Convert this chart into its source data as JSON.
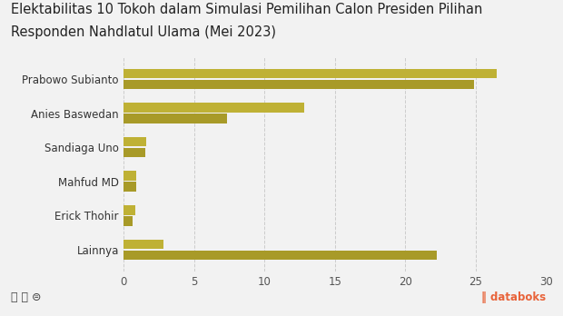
{
  "categories": [
    "Prabowo Subianto",
    "Anies Baswedan",
    "Sandiaga Uno",
    "Mahfud MD",
    "Erick Thohir",
    "Lainnya"
  ],
  "values_top": [
    26.5,
    12.8,
    1.6,
    0.9,
    0.8,
    2.8
  ],
  "values_bottom": [
    24.9,
    7.3,
    1.5,
    0.85,
    0.6,
    22.2
  ],
  "bar_color_top": "#bfb135",
  "bar_color_bottom": "#a89a28",
  "title_line1": "Elektabilitas 10 Tokoh dalam Simulasi Pemilihan Calon Presiden Pilihan",
  "title_line2": "Responden Nahdlatul Ulama (Mei 2023)",
  "xlim": [
    0,
    30
  ],
  "xticks": [
    0,
    5,
    10,
    15,
    20,
    25,
    30
  ],
  "background_color": "#f2f2f2",
  "plot_bg_color": "#f2f2f2",
  "title_fontsize": 10.5,
  "label_fontsize": 8.5,
  "tick_fontsize": 8.5
}
